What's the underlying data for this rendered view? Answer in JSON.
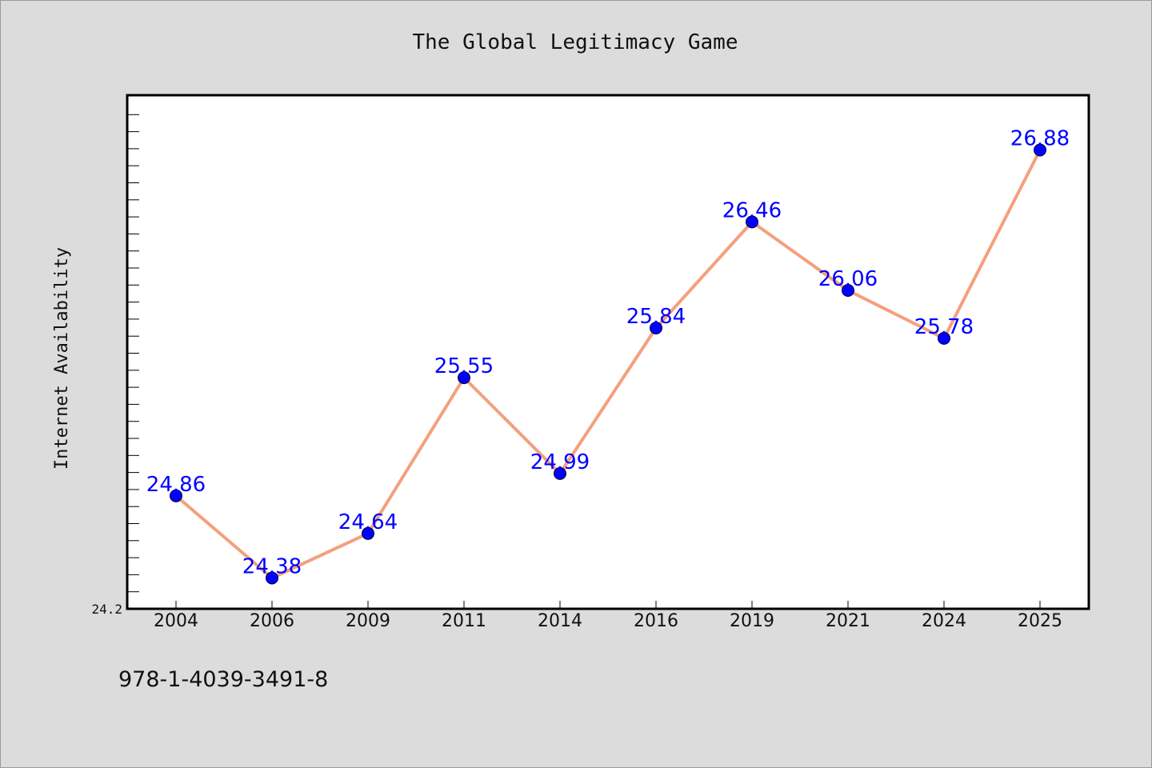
{
  "chart_data": {
    "type": "line",
    "title": "The Global Legitimacy Game",
    "xlabel": "",
    "ylabel": "Internet Availability",
    "categories": [
      "2004",
      "2006",
      "2009",
      "2011",
      "2014",
      "2016",
      "2019",
      "2021",
      "2024",
      "2025"
    ],
    "series": [
      {
        "values": [
          24.86,
          24.38,
          24.64,
          25.55,
          24.99,
          25.84,
          26.46,
          26.06,
          25.78,
          26.88
        ]
      }
    ],
    "data_labels": [
      "24.86",
      "24.38",
      "24.64",
      "25.55",
      "24.99",
      "25.84",
      "26.46",
      "26.06",
      "25.78",
      "26.88"
    ],
    "ytick_labels": [
      "24.2"
    ],
    "ylim": [
      24.2,
      27.2
    ],
    "grid": false,
    "line_color": "#f4a07e",
    "marker_color": "#0000ff",
    "label_color": "#0000ff"
  },
  "footer": {
    "isbn": "978-1-4039-3491-8"
  }
}
